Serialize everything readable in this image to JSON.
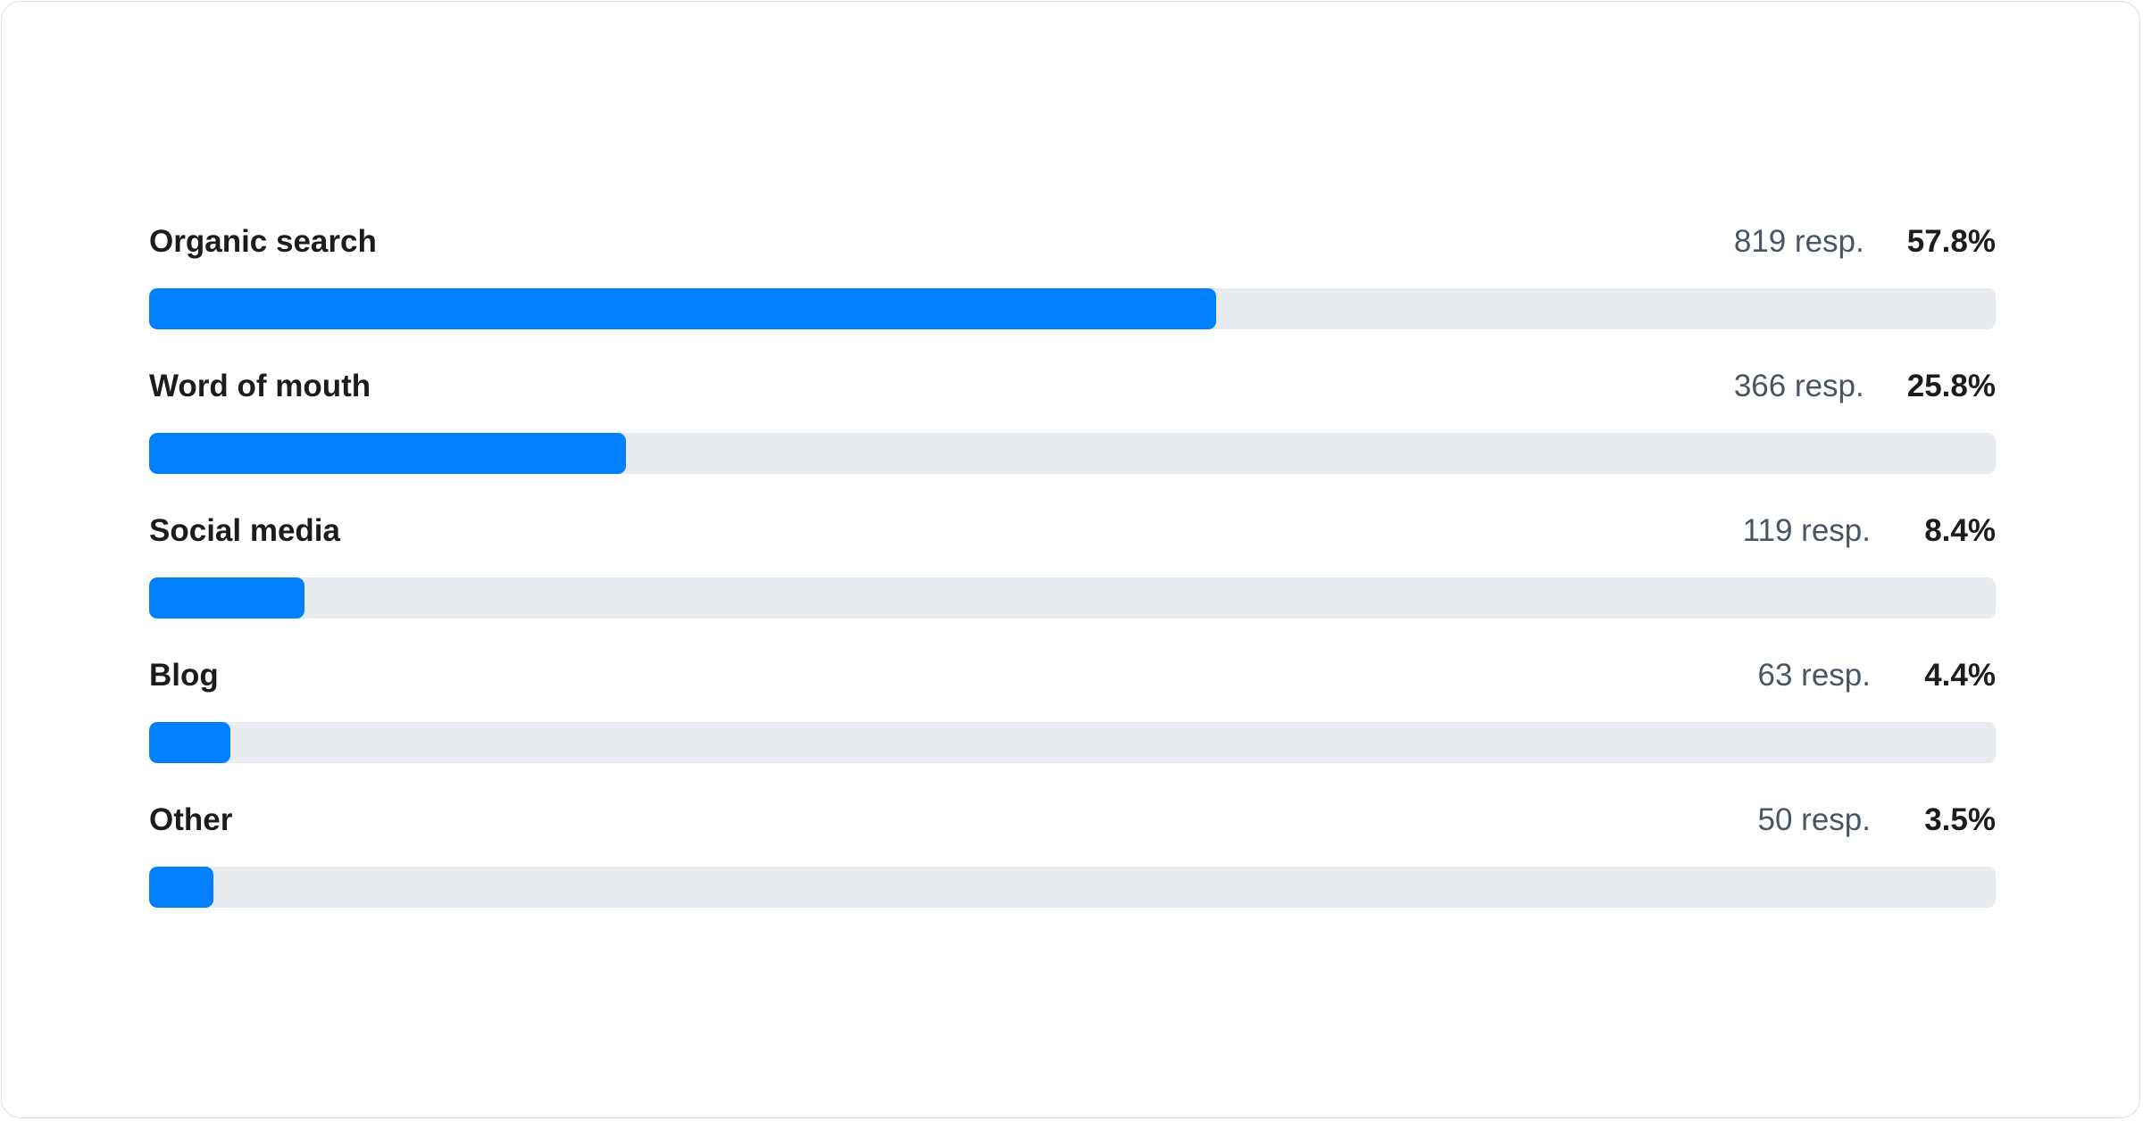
{
  "chart_data": {
    "type": "bar",
    "orientation": "horizontal",
    "categories": [
      "Organic search",
      "Word of mouth",
      "Social media",
      "Blog",
      "Other"
    ],
    "responses": [
      "819 resp.",
      "366 resp.",
      "119 resp.",
      "63 resp.",
      "50 resp."
    ],
    "percent_labels": [
      "57.8%",
      "25.8%",
      "8.4%",
      "4.4%",
      "3.5%"
    ],
    "values": [
      57.8,
      25.8,
      8.4,
      4.4,
      3.5
    ],
    "xlim": [
      0,
      100
    ],
    "colors": {
      "fill": "#0080ff",
      "track": "#e8ecf1"
    }
  }
}
